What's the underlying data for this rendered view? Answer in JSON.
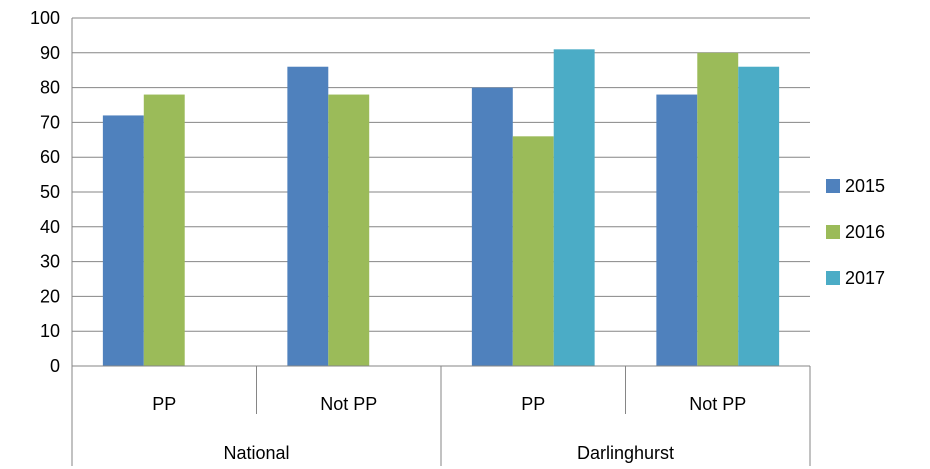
{
  "chart_data": {
    "type": "bar",
    "groups": [
      {
        "name": "National",
        "categories": [
          "PP",
          "Not PP"
        ]
      },
      {
        "name": "Darlinghurst",
        "categories": [
          "PP",
          "Not PP"
        ]
      }
    ],
    "categories": [
      "PP",
      "Not PP",
      "PP",
      "Not PP"
    ],
    "series": [
      {
        "name": "2015",
        "color": "#4F81BD",
        "values": [
          72,
          86,
          80,
          78
        ]
      },
      {
        "name": "2016",
        "color": "#9BBB59",
        "values": [
          78,
          78,
          66,
          90
        ]
      },
      {
        "name": "2017",
        "color": "#4BACC6",
        "values": [
          null,
          null,
          91,
          86
        ]
      }
    ],
    "yticks": [
      "0",
      "10",
      "20",
      "30",
      "40",
      "50",
      "60",
      "70",
      "80",
      "90",
      "100"
    ],
    "ylim": [
      0,
      100
    ],
    "ytick_step": 10,
    "grid": true,
    "legend_position": "right"
  }
}
